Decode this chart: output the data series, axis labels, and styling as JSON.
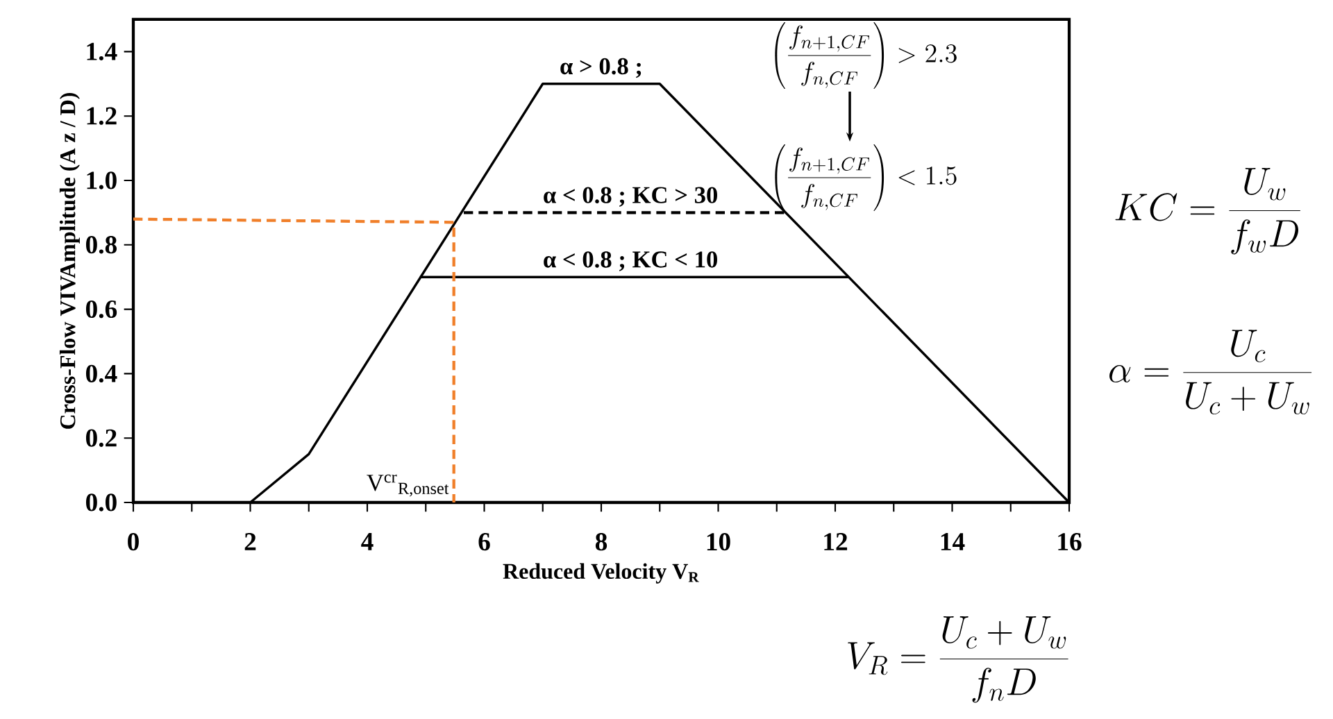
{
  "chart_data": {
    "type": "line",
    "xlabel": "Reduced Velocity V$_{R}$",
    "ylabel": "Cross-Flow VIVAmplitude (A z / D)",
    "xlim": [
      0,
      16
    ],
    "ylim": [
      0,
      1.5
    ],
    "xticks": [
      0,
      {
        "value": 1,
        "label": null
      },
      2,
      {
        "value": 3,
        "label": null
      },
      4,
      {
        "value": 5,
        "label": null
      },
      6,
      {
        "value": 7,
        "label": null
      },
      8,
      {
        "value": 9,
        "label": null
      },
      10,
      {
        "value": 11,
        "label": null
      },
      12,
      {
        "value": 13,
        "label": null
      },
      14,
      {
        "value": 15,
        "label": null
      },
      16
    ],
    "yticks": [
      {
        "value": 0,
        "label": "0.0"
      },
      {
        "value": 0.2,
        "label": "0.2"
      },
      {
        "value": 0.4,
        "label": "0.4"
      },
      {
        "value": 0.6,
        "label": "0.6"
      },
      {
        "value": 0.8,
        "label": "0.8"
      },
      {
        "value": 1.0,
        "label": "1.0"
      },
      {
        "value": 1.2,
        "label": "1.2"
      },
      {
        "value": 1.4,
        "label": "1.4"
      }
    ],
    "grid": false,
    "marker": "none",
    "series": [
      {
        "color": "#000000",
        "line_style": "solid",
        "x": [
          2,
          3,
          7,
          9,
          16
        ],
        "values": [
          0,
          0.15,
          1.3,
          1.3,
          0
        ]
      },
      {
        "color": "#000000",
        "line_style": "dashed",
        "x": [
          5.65,
          11.15
        ],
        "values": [
          0.9,
          0.9
        ]
      },
      {
        "color": "#000000",
        "line_style": "solid",
        "x": [
          4.9,
          12.23
        ],
        "values": [
          0.7,
          0.7
        ]
      },
      {
        "color": "#f07f2a",
        "line_style": "dashed",
        "x": [
          0,
          5.48,
          5.48
        ],
        "values": [
          0.88,
          0.87,
          0
        ]
      }
    ],
    "annotations": [
      {
        "text": "α > 0.8 ;",
        "x": 8,
        "y": 1.3
      },
      {
        "text": "α < 0.8 ; KC > 30",
        "x": 8.5,
        "y": 0.9
      },
      {
        "text": "α < 0.8 ; KC < 10",
        "x": 8.5,
        "y": 0.7
      },
      {
        "text": "V$^{cr}$$_{R,onset}$",
        "x": 5.48,
        "y": 0
      },
      "\\left(\\frac{f_{n+1,CF}}{f_{n,CF}}\\right) > 2.3",
      "\\left(\\frac{f_{n+1,CF}}{f_{n,CF}}\\right) < 1.5",
      "KC = \\frac{U_w}{f_w D}",
      "\\alpha = \\frac{U_c}{U_c + U_w}",
      "V_R = \\frac{U_c + U_w}{f_n D}"
    ]
  }
}
